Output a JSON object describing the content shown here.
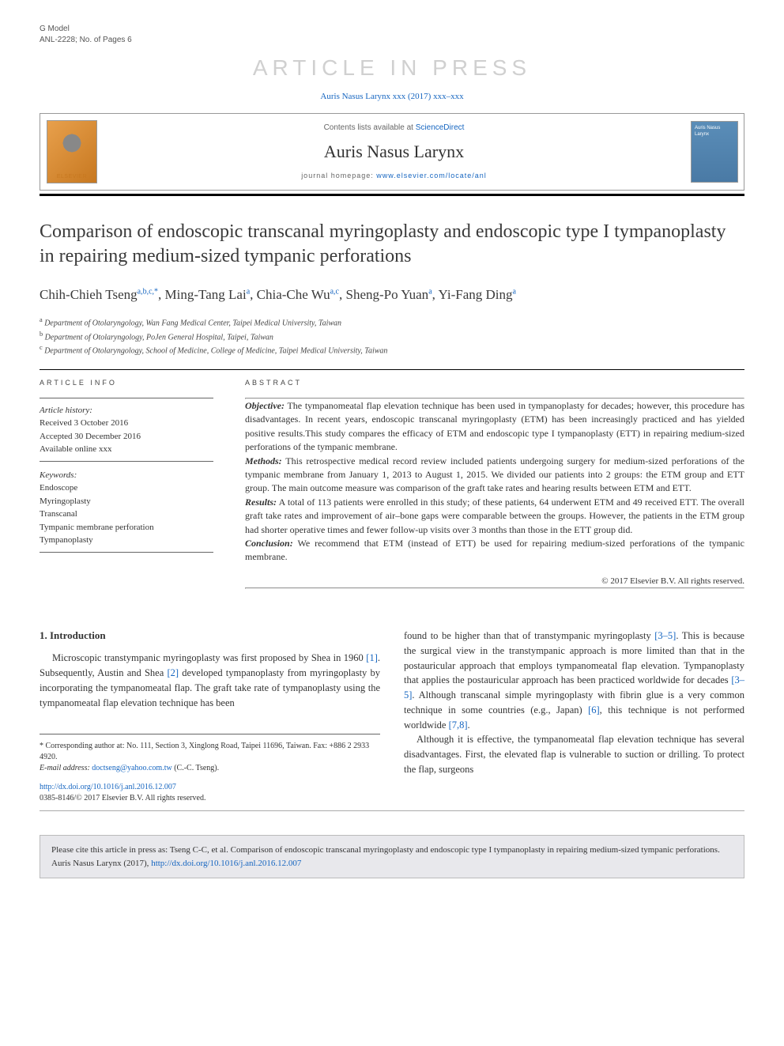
{
  "header": {
    "gmodel_label": "G Model",
    "anl_ref": "ANL-2228; No. of Pages 6",
    "watermark": "ARTICLE IN PRESS",
    "journal_ref": "Auris Nasus Larynx xxx (2017) xxx–xxx"
  },
  "masthead": {
    "elsevier_label": "ELSEVIER",
    "contents_text": "Contents lists available at ",
    "sciencedirect": "ScienceDirect",
    "journal_name": "Auris Nasus Larynx",
    "homepage_label": "journal homepage: ",
    "homepage_url": "www.elsevier.com/locate/anl",
    "cover_text": "Auris Nasus Larynx"
  },
  "title": "Comparison of endoscopic transcanal myringoplasty and endoscopic type I tympanoplasty in repairing medium-sized tympanic perforations",
  "authors": [
    {
      "name": "Chih-Chieh Tseng",
      "sup": "a,b,c,*"
    },
    {
      "name": "Ming-Tang Lai",
      "sup": "a"
    },
    {
      "name": "Chia-Che Wu",
      "sup": "a,c"
    },
    {
      "name": "Sheng-Po Yuan",
      "sup": "a"
    },
    {
      "name": "Yi-Fang Ding",
      "sup": "a"
    }
  ],
  "affiliations": [
    {
      "sup": "a",
      "text": "Department of Otolaryngology, Wan Fang Medical Center, Taipei Medical University, Taiwan"
    },
    {
      "sup": "b",
      "text": "Department of Otolaryngology, PoJen General Hospital, Taipei, Taiwan"
    },
    {
      "sup": "c",
      "text": "Department of Otolaryngology, School of Medicine, College of Medicine, Taipei Medical University, Taiwan"
    }
  ],
  "article_info": {
    "label": "ARTICLE INFO",
    "history_label": "Article history:",
    "history": [
      "Received 3 October 2016",
      "Accepted 30 December 2016",
      "Available online xxx"
    ],
    "keywords_label": "Keywords:",
    "keywords": [
      "Endoscope",
      "Myringoplasty",
      "Transcanal",
      "Tympanic membrane perforation",
      "Tympanoplasty"
    ]
  },
  "abstract": {
    "label": "ABSTRACT",
    "sections": {
      "objective_label": "Objective:",
      "objective": " The tympanomeatal flap elevation technique has been used in tympanoplasty for decades; however, this procedure has disadvantages. In recent years, endoscopic transcanal myringoplasty (ETM) has been increasingly practiced and has yielded positive results.This study compares the efficacy of ETM and endoscopic type I tympanoplasty (ETT) in repairing medium-sized perforations of the tympanic membrane.",
      "methods_label": "Methods:",
      "methods": " This retrospective medical record review included patients undergoing surgery for medium-sized perforations of the tympanic membrane from January 1, 2013 to August 1, 2015. We divided our patients into 2 groups: the ETM group and ETT group. The main outcome measure was comparison of the graft take rates and hearing results between ETM and ETT.",
      "results_label": "Results:",
      "results": " A total of 113 patients were enrolled in this study; of these patients, 64 underwent ETM and 49 received ETT. The overall graft take rates and improvement of air–bone gaps were comparable between the groups. However, the patients in the ETM group had shorter operative times and fewer follow-up visits over 3 months than those in the ETT group did.",
      "conclusion_label": "Conclusion:",
      "conclusion": " We recommend that ETM (instead of ETT) be used for repairing medium-sized perforations of the tympanic membrane."
    },
    "copyright": "© 2017 Elsevier B.V. All rights reserved."
  },
  "body": {
    "intro_heading": "1. Introduction",
    "col1_p1_a": "Microscopic transtympanic myringoplasty was first proposed by Shea in 1960 ",
    "col1_ref1": "[1]",
    "col1_p1_b": ". Subsequently, Austin and Shea ",
    "col1_ref2": "[2]",
    "col1_p1_c": " developed tympanoplasty from myringoplasty by incorporating the tympanomeatal flap. The graft take rate of tympanoplasty using the tympanomeatal flap elevation technique has been",
    "col2_p1_a": "found to be higher than that of transtympanic myringoplasty ",
    "col2_ref35a": "[3–5]",
    "col2_p1_b": ". This is because the surgical view in the transtympanic approach is more limited than that in the postauricular approach that employs tympanomeatal flap elevation. Tympanoplasty that applies the postauricular approach has been practiced worldwide for decades ",
    "col2_ref35b": "[3–5]",
    "col2_p1_c": ". Although transcanal simple myringoplasty with fibrin glue is a very common technique in some countries (e.g., Japan) ",
    "col2_ref6": "[6]",
    "col2_p1_d": ", this technique is not performed worldwide ",
    "col2_ref78": "[7,8]",
    "col2_p1_e": ".",
    "col2_p2": "Although it is effective, the tympanomeatal flap elevation technique has several disadvantages. First, the elevated flap is vulnerable to suction or drilling. To protect the flap, surgeons"
  },
  "correspondence": {
    "corr_label": "* Corresponding author at: ",
    "corr_addr": "No. 111, Section 3, Xinglong Road, Taipei 11696, Taiwan. Fax: +886 2 2933 4920.",
    "email_label": "E-mail address: ",
    "email": "doctseng@yahoo.com.tw",
    "email_author": " (C.-C. Tseng)."
  },
  "doi": {
    "doi_url": "http://dx.doi.org/10.1016/j.anl.2016.12.007",
    "issn_line": "0385-8146/© 2017 Elsevier B.V. All rights reserved."
  },
  "citebox": {
    "text_a": "Please cite this article in press as: Tseng C-C, et al. Comparison of endoscopic transcanal myringoplasty and endoscopic type I tympanoplasty in repairing medium-sized tympanic perforations. Auris Nasus Larynx (2017), ",
    "url": "http://dx.doi.org/10.1016/j.anl.2016.12.007"
  },
  "colors": {
    "link": "#1565c0",
    "watermark": "#d0d0d0",
    "citebox_bg": "#e8e8ec"
  }
}
